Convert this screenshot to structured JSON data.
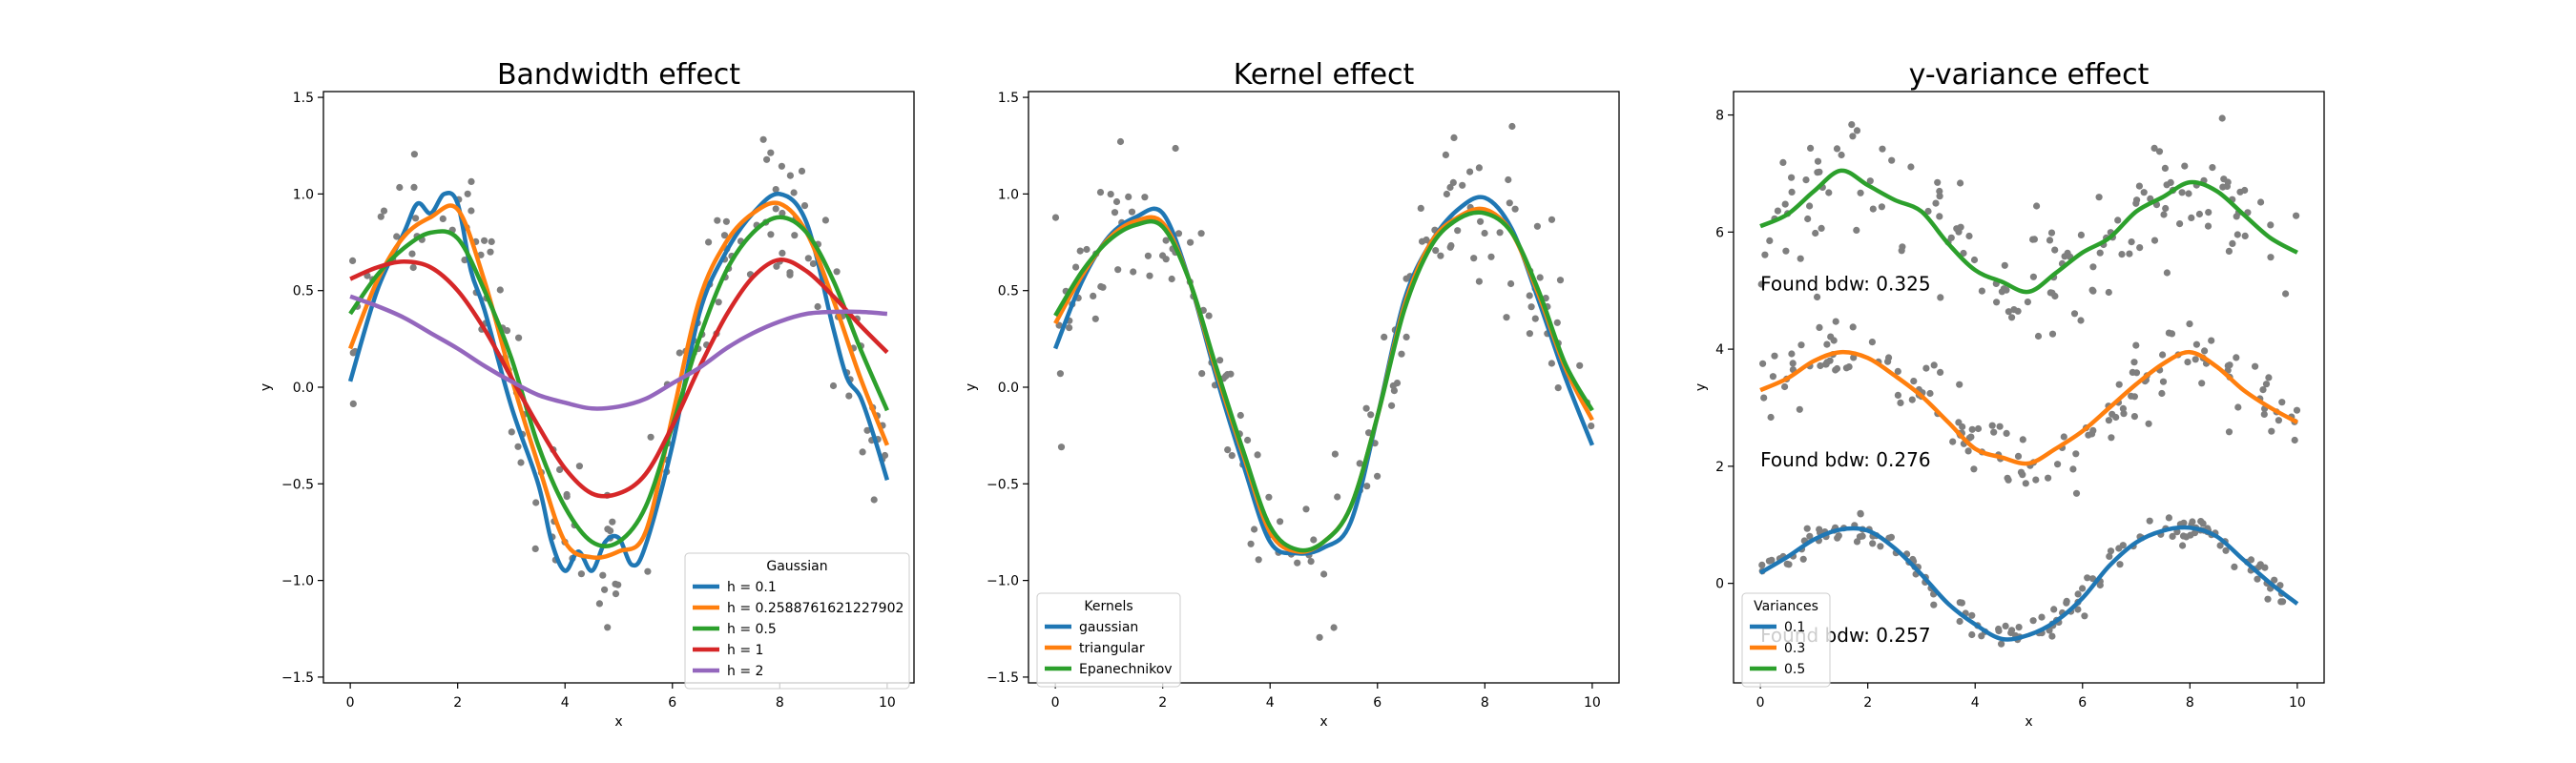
{
  "chart_data": [
    {
      "type": "line",
      "title": "Bandwidth effect",
      "xlabel": "x",
      "ylabel": "y",
      "xlim": [
        -0.5,
        10.5
      ],
      "ylim": [
        -1.53,
        1.53
      ],
      "xticks": [
        "0",
        "2",
        "4",
        "6",
        "8",
        "10"
      ],
      "yticks": [
        "−1.5",
        "−1.0",
        "−0.5",
        "0.0",
        "0.5",
        "1.0",
        "1.5"
      ],
      "scatter_color": "#7f7f7f",
      "legend": {
        "title": "Gaussian",
        "position": "lower right"
      },
      "series": [
        {
          "name": "h = 0.1",
          "color": "#1f77b4",
          "x": [
            0,
            0.5,
            1,
            1.25,
            1.5,
            1.75,
            2,
            2.25,
            2.5,
            3,
            3.5,
            3.75,
            4,
            4.25,
            4.5,
            4.75,
            5,
            5.25,
            5.5,
            6,
            6.5,
            7,
            7.5,
            8,
            8.5,
            9,
            9.25,
            9.5,
            9.75,
            10
          ],
          "y": [
            0.03,
            0.5,
            0.8,
            0.95,
            0.9,
            1.0,
            0.95,
            0.6,
            0.4,
            -0.1,
            -0.5,
            -0.8,
            -0.95,
            -0.85,
            -0.95,
            -0.8,
            -0.78,
            -0.92,
            -0.82,
            -0.3,
            0.38,
            0.7,
            0.9,
            1.0,
            0.85,
            0.3,
            0.05,
            -0.05,
            -0.25,
            -0.48
          ]
        },
        {
          "name": "h = 0.25887616212279​02",
          "color": "#ff7f0e",
          "x": [
            0,
            0.5,
            1,
            1.5,
            2,
            2.5,
            3,
            3.5,
            4,
            4.5,
            5,
            5.5,
            6,
            6.5,
            7,
            7.5,
            8,
            8.5,
            9,
            9.5,
            10
          ],
          "y": [
            0.2,
            0.55,
            0.78,
            0.88,
            0.92,
            0.55,
            0.05,
            -0.4,
            -0.8,
            -0.88,
            -0.85,
            -0.75,
            -0.15,
            0.45,
            0.75,
            0.9,
            0.95,
            0.8,
            0.45,
            0.05,
            -0.3
          ]
        },
        {
          "name": "h = 0.5",
          "color": "#2ca02c",
          "x": [
            0,
            0.5,
            1,
            1.5,
            2,
            2.5,
            3,
            3.5,
            4,
            4.5,
            5,
            5.5,
            6,
            6.5,
            7,
            7.5,
            8,
            8.5,
            9,
            9.5,
            10
          ],
          "y": [
            0.38,
            0.58,
            0.72,
            0.8,
            0.77,
            0.5,
            0.15,
            -0.3,
            -0.62,
            -0.8,
            -0.8,
            -0.62,
            -0.2,
            0.25,
            0.6,
            0.8,
            0.88,
            0.8,
            0.55,
            0.2,
            -0.12
          ]
        },
        {
          "name": "h = 1",
          "color": "#d62728",
          "x": [
            0,
            0.5,
            1,
            1.5,
            2,
            2.5,
            3,
            3.5,
            4,
            4.5,
            5,
            5.5,
            6,
            6.5,
            7,
            7.5,
            8,
            8.5,
            9,
            9.5,
            10
          ],
          "y": [
            0.56,
            0.62,
            0.65,
            0.62,
            0.5,
            0.3,
            0.05,
            -0.2,
            -0.42,
            -0.55,
            -0.55,
            -0.45,
            -0.2,
            0.1,
            0.37,
            0.57,
            0.66,
            0.6,
            0.47,
            0.32,
            0.18
          ]
        },
        {
          "name": "h = 2",
          "color": "#9467bd",
          "x": [
            0,
            0.5,
            1,
            1.5,
            2,
            2.5,
            3,
            3.5,
            4,
            4.5,
            5,
            5.5,
            6,
            6.5,
            7,
            7.5,
            8,
            8.5,
            9,
            9.5,
            10
          ],
          "y": [
            0.47,
            0.42,
            0.36,
            0.28,
            0.2,
            0.11,
            0.03,
            -0.04,
            -0.08,
            -0.11,
            -0.1,
            -0.06,
            0.02,
            0.1,
            0.2,
            0.28,
            0.34,
            0.38,
            0.39,
            0.39,
            0.38
          ]
        }
      ]
    },
    {
      "type": "line",
      "title": "Kernel effect",
      "xlabel": "x",
      "ylabel": "y",
      "xlim": [
        -0.5,
        10.5
      ],
      "ylim": [
        -1.53,
        1.53
      ],
      "xticks": [
        "0",
        "2",
        "4",
        "6",
        "8",
        "10"
      ],
      "yticks": [
        "−1.5",
        "−1.0",
        "−0.5",
        "0.0",
        "0.5",
        "1.0",
        "1.5"
      ],
      "scatter_color": "#7f7f7f",
      "legend": {
        "title": "Kernels",
        "position": "lower left"
      },
      "series": [
        {
          "name": "gaussian",
          "color": "#1f77b4",
          "x": [
            0,
            0.5,
            1,
            1.5,
            2,
            2.5,
            3,
            3.5,
            4,
            4.5,
            5,
            5.5,
            6,
            6.5,
            7,
            7.5,
            8,
            8.5,
            9,
            9.5,
            10
          ],
          "y": [
            0.2,
            0.55,
            0.78,
            0.88,
            0.9,
            0.55,
            0.05,
            -0.4,
            -0.8,
            -0.86,
            -0.83,
            -0.7,
            -0.15,
            0.45,
            0.75,
            0.92,
            0.98,
            0.82,
            0.45,
            0.05,
            -0.3
          ]
        },
        {
          "name": "triangular",
          "color": "#ff7f0e",
          "x": [
            0,
            0.5,
            1,
            1.5,
            2,
            2.5,
            3,
            3.5,
            4,
            4.5,
            5,
            5.5,
            6,
            6.5,
            7,
            7.5,
            8,
            8.5,
            9,
            9.5,
            10
          ],
          "y": [
            0.33,
            0.58,
            0.77,
            0.86,
            0.85,
            0.55,
            0.08,
            -0.35,
            -0.75,
            -0.85,
            -0.8,
            -0.62,
            -0.15,
            0.42,
            0.75,
            0.88,
            0.92,
            0.8,
            0.48,
            0.1,
            -0.17
          ]
        },
        {
          "name": "Epanechnikov",
          "color": "#2ca02c",
          "x": [
            0,
            0.5,
            1,
            1.5,
            2,
            2.5,
            3,
            3.5,
            4,
            4.5,
            5,
            5.5,
            6,
            6.5,
            7,
            7.5,
            8,
            8.5,
            9,
            9.5,
            10
          ],
          "y": [
            0.37,
            0.6,
            0.76,
            0.84,
            0.83,
            0.55,
            0.1,
            -0.33,
            -0.72,
            -0.84,
            -0.8,
            -0.62,
            -0.15,
            0.4,
            0.73,
            0.87,
            0.9,
            0.8,
            0.5,
            0.12,
            -0.12
          ]
        }
      ]
    },
    {
      "type": "line",
      "title": "y-variance effect",
      "xlabel": "x",
      "ylabel": "y",
      "xlim": [
        -0.5,
        10.5
      ],
      "ylim": [
        -1.7,
        8.4
      ],
      "xticks": [
        "0",
        "2",
        "4",
        "6",
        "8",
        "10"
      ],
      "yticks": [
        "0",
        "2",
        "4",
        "6",
        "8"
      ],
      "scatter_color": "#7f7f7f",
      "legend": {
        "title": "Variances",
        "position": "lower left"
      },
      "annotations": [
        {
          "text": "Found bdw: 0.325",
          "x": 0,
          "y": 5.0
        },
        {
          "text": "Found bdw: 0.276",
          "x": 0,
          "y": 2.0
        },
        {
          "text": "Found bdw: 0.257",
          "x": 0,
          "y": -1.0
        }
      ],
      "series": [
        {
          "name": "0.1",
          "color": "#1f77b4",
          "x": [
            0,
            0.5,
            1,
            1.5,
            2,
            2.5,
            3,
            3.5,
            4,
            4.5,
            5,
            5.5,
            6,
            6.5,
            7,
            7.5,
            8,
            8.5,
            9,
            9.5,
            10
          ],
          "y": [
            0.18,
            0.45,
            0.75,
            0.92,
            0.9,
            0.6,
            0.15,
            -0.35,
            -0.7,
            -0.95,
            -0.88,
            -0.65,
            -0.25,
            0.3,
            0.7,
            0.9,
            0.95,
            0.8,
            0.4,
            0.0,
            -0.35
          ]
        },
        {
          "name": "0.3",
          "color": "#ff7f0e",
          "x": [
            0,
            0.5,
            1,
            1.5,
            2,
            2.5,
            3,
            3.5,
            4,
            4.5,
            5,
            5.5,
            6,
            6.5,
            7,
            7.5,
            8,
            8.5,
            9,
            9.5,
            10
          ],
          "y": [
            3.3,
            3.5,
            3.8,
            3.95,
            3.85,
            3.55,
            3.2,
            2.75,
            2.3,
            2.15,
            2.05,
            2.3,
            2.6,
            3.0,
            3.4,
            3.75,
            3.95,
            3.7,
            3.3,
            3.0,
            2.75
          ]
        },
        {
          "name": "0.5",
          "color": "#2ca02c",
          "x": [
            0,
            0.5,
            1,
            1.5,
            2,
            2.5,
            3,
            3.5,
            4,
            4.5,
            5,
            5.5,
            6,
            6.5,
            7,
            7.5,
            8,
            8.5,
            9,
            9.5,
            10
          ],
          "y": [
            6.1,
            6.3,
            6.7,
            7.05,
            6.8,
            6.55,
            6.35,
            5.8,
            5.35,
            5.15,
            4.98,
            5.3,
            5.65,
            5.9,
            6.35,
            6.6,
            6.85,
            6.7,
            6.3,
            5.9,
            5.65
          ]
        }
      ]
    }
  ]
}
